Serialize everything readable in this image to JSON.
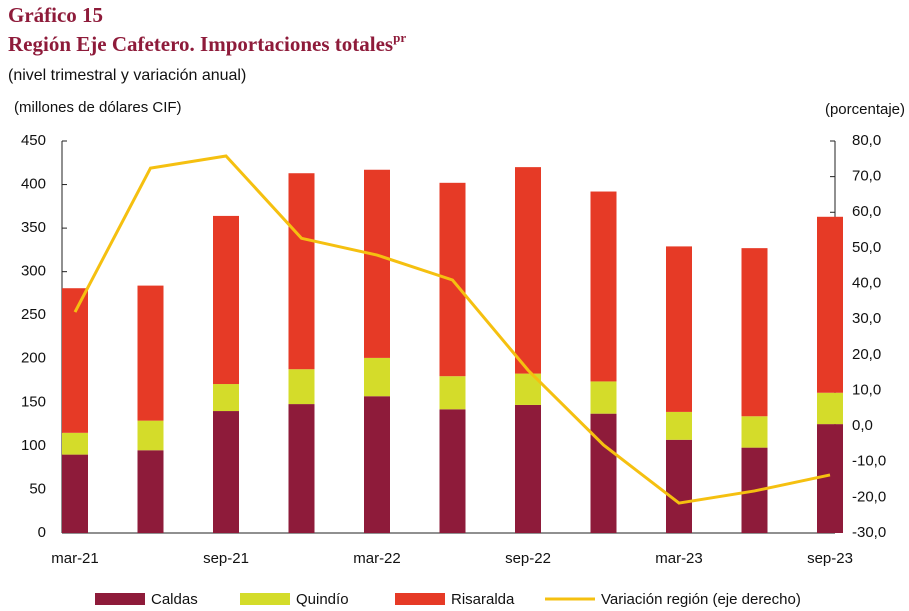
{
  "chart_data": {
    "type": "bar",
    "heading": "Gráfico 15",
    "title": "Región Eje Cafetero. Importaciones totales",
    "title_superscript": "pr",
    "subtitle": "(nivel trimestral y variación anual)",
    "ylabel": "(millones de dólares CIF)",
    "y2label": "(porcentaje)",
    "stacked": true,
    "categories": [
      "mar-21",
      null,
      "sep-21",
      null,
      "mar-22",
      null,
      "sep-22",
      null,
      "mar-23",
      null,
      "sep-23"
    ],
    "series": [
      {
        "name": "Caldas",
        "color": "#8e1b3a",
        "values": [
          90,
          95,
          140,
          148,
          157,
          142,
          147,
          137,
          107,
          98,
          125
        ]
      },
      {
        "name": "Quindío",
        "color": "#d4dc2a",
        "values": [
          25,
          34,
          31,
          40,
          44,
          38,
          36,
          37,
          32,
          36,
          36
        ]
      },
      {
        "name": "Risaralda",
        "color": "#e63a26",
        "values": [
          166,
          155,
          193,
          225,
          216,
          222,
          237,
          218,
          190,
          193,
          202
        ]
      },
      {
        "name": "Variación región (eje derecho)",
        "color": "#f5c010",
        "type": "line",
        "axis": "y2",
        "values": [
          32,
          72.4,
          75.8,
          52.7,
          48,
          41,
          15.7,
          -5.3,
          -21.6,
          -18.2,
          -13.7
        ]
      }
    ],
    "ylim": [
      0,
      450
    ],
    "yticks": [
      0,
      50,
      100,
      150,
      200,
      250,
      300,
      350,
      400,
      450
    ],
    "y2lim": [
      -30,
      80
    ],
    "y2ticks": [
      {
        "value": -30,
        "label": "-30,0"
      },
      {
        "value": -20,
        "label": "-20,0"
      },
      {
        "value": -10,
        "label": "-10,0"
      },
      {
        "value": 0,
        "label": "0,0"
      },
      {
        "value": 10,
        "label": "10,0"
      },
      {
        "value": 20,
        "label": "20,0"
      },
      {
        "value": 30,
        "label": "30,0"
      },
      {
        "value": 40,
        "label": "40,0"
      },
      {
        "value": 50,
        "label": "50,0"
      },
      {
        "value": 60,
        "label": "60,0"
      },
      {
        "value": 70,
        "label": "70,0"
      },
      {
        "value": 80,
        "label": "80,0"
      }
    ],
    "grid": false,
    "legend": "bottom"
  }
}
